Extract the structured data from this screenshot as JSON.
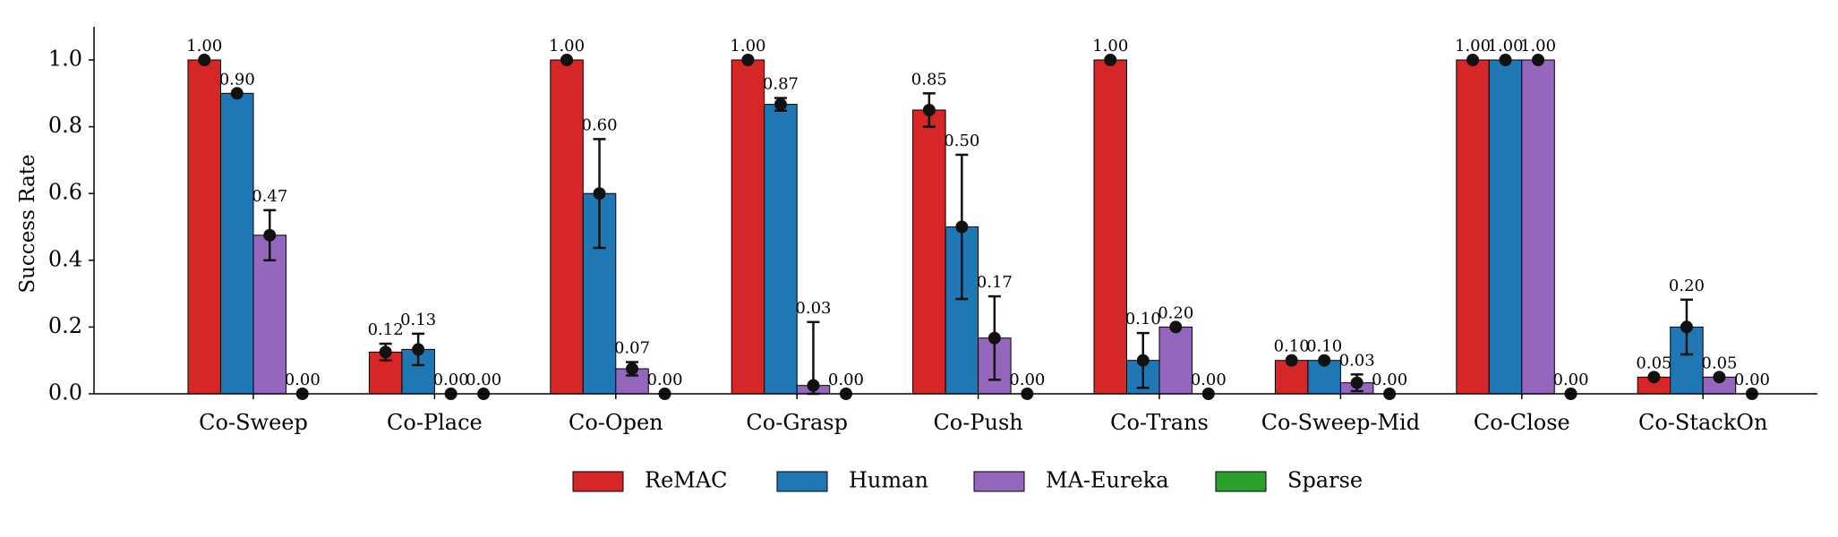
{
  "chart_data": {
    "type": "bar",
    "ylabel": "Success Rate",
    "xlabel": "",
    "ylim": [
      0,
      1.1
    ],
    "yticks": [
      0.0,
      0.2,
      0.4,
      0.6,
      0.8,
      1.0
    ],
    "ytick_labels": [
      "0.0",
      "0.2",
      "0.4",
      "0.6",
      "0.8",
      "1.0"
    ],
    "grid": false,
    "legend_position": "bottom",
    "categories": [
      "Co-Sweep",
      "Co-Place",
      "Co-Open",
      "Co-Grasp",
      "Co-Push",
      "Co-Trans",
      "Co-Sweep-Mid",
      "Co-Close",
      "Co-StackOn"
    ],
    "series": [
      {
        "name": "ReMAC",
        "color": "#d62728",
        "values": [
          1.0,
          0.125,
          1.0,
          1.0,
          0.85,
          1.0,
          0.1,
          1.0,
          0.05
        ],
        "labels": [
          "1.00",
          "0.12",
          "1.00",
          "1.00",
          "0.85",
          "1.00",
          "0.10",
          "1.00",
          "0.05"
        ],
        "error": [
          0,
          0.025,
          0,
          0,
          0.05,
          0,
          0,
          0,
          0
        ]
      },
      {
        "name": "Human",
        "color": "#1f77b4",
        "values": [
          0.9,
          0.133,
          0.6,
          0.867,
          0.5,
          0.1,
          0.1,
          1.0,
          0.2
        ],
        "labels": [
          "0.90",
          "0.13",
          "0.60",
          "0.87",
          "0.50",
          "0.10",
          "0.10",
          "1.00",
          "0.20"
        ],
        "error": [
          0,
          0.047,
          0.163,
          0.019,
          0.216,
          0.082,
          0,
          0,
          0.082
        ]
      },
      {
        "name": "MA-Eureka",
        "color": "#9467bd",
        "values": [
          0.475,
          0.0,
          0.075,
          0.025,
          0.167,
          0.2,
          0.033,
          1.0,
          0.05
        ],
        "labels": [
          "0.47",
          "0.00",
          "0.07",
          "0.03",
          "0.17",
          "0.20",
          "0.03",
          "1.00",
          "0.05"
        ],
        "error": [
          0.075,
          0,
          0.02,
          0.19,
          0.125,
          0,
          0.025,
          0,
          0
        ]
      },
      {
        "name": "Sparse",
        "color": "#2ca02c",
        "values": [
          0.0,
          0.0,
          0.0,
          0.0,
          0.0,
          0.0,
          0.0,
          0.0,
          0.0
        ],
        "labels": [
          "0.00",
          "0.00",
          "0.00",
          "0.00",
          "0.00",
          "0.00",
          "0.00",
          "0.00",
          "0.00"
        ],
        "error": [
          0,
          0,
          0,
          0,
          0,
          0,
          0,
          0,
          0
        ]
      }
    ]
  }
}
